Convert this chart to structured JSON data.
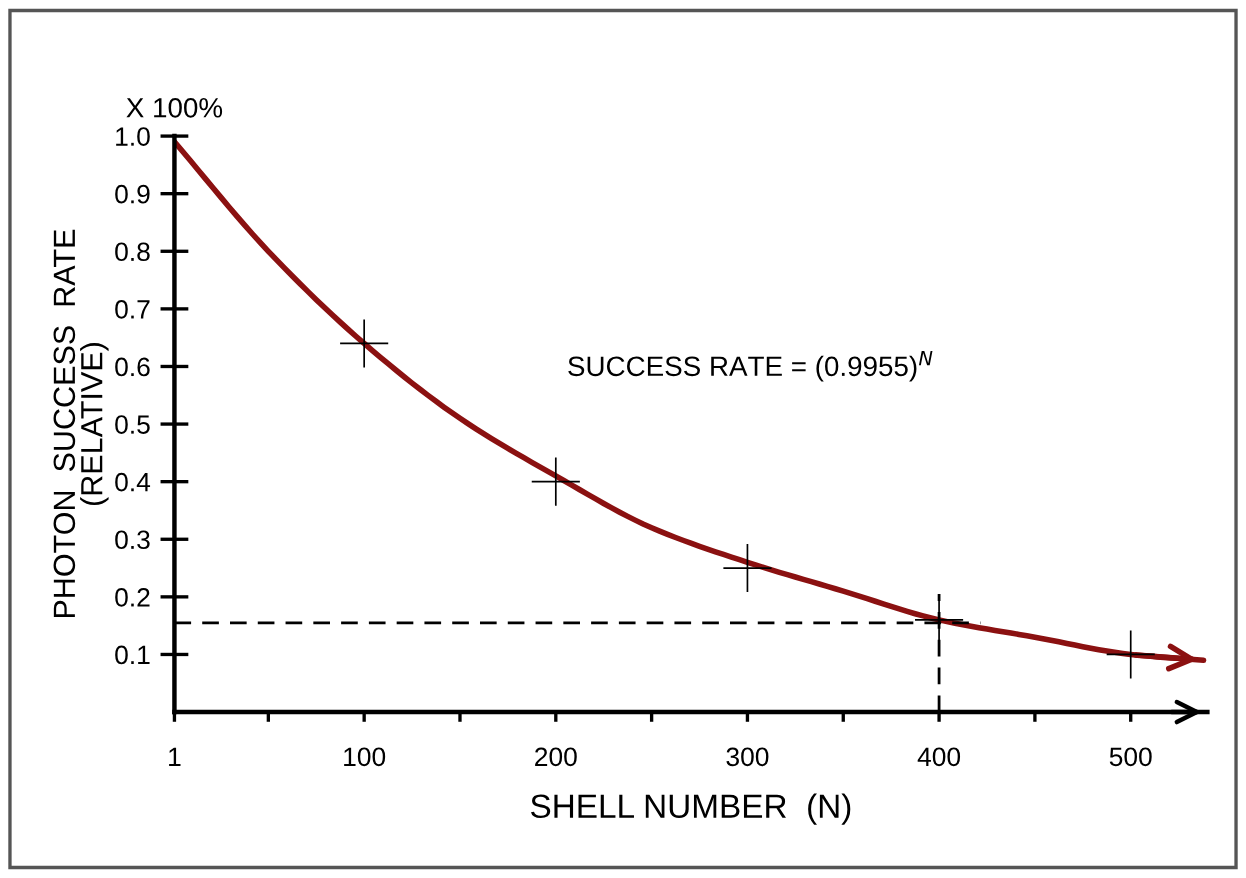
{
  "chart_data": {
    "type": "line",
    "xlabel": "SHELL NUMBER  (N)",
    "ylabel": "PHOTON  SUCCESS  RATE\n(RELATIVE)",
    "annotations": [
      "X 100%",
      "SUCCESS RATE = (0.9955)$^{N}$"
    ],
    "xlim": [
      1,
      540
    ],
    "xticks": [
      1,
      {
        "value": 50,
        "label": null
      },
      100,
      {
        "value": 150,
        "label": null
      },
      200,
      {
        "value": 250,
        "label": null
      },
      300,
      {
        "value": 350,
        "label": null
      },
      400,
      {
        "value": 450,
        "label": null
      },
      500
    ],
    "ylim": [
      0,
      1.0
    ],
    "yticks": [
      0.1,
      0.2,
      0.3,
      0.4,
      0.5,
      0.6,
      0.7,
      0.8,
      0.9,
      {
        "value": 1.0,
        "label": "1.0"
      }
    ],
    "grid": false,
    "legend": false,
    "series": [
      {
        "type": "line",
        "color": "#8b1111",
        "line_style": "solid",
        "marker": "none",
        "x": [
          1,
          50,
          100,
          150,
          200,
          250,
          300,
          350,
          400,
          450,
          500,
          538
        ],
        "values": [
          0.99,
          0.8,
          0.64,
          0.51,
          0.41,
          0.32,
          0.26,
          0.21,
          0.16,
          0.13,
          0.1,
          0.09
        ]
      },
      {
        "type": "scatter",
        "color": "#000000",
        "marker": "cross",
        "x": [
          100,
          200,
          300,
          400,
          500
        ],
        "values": [
          0.64,
          0.4,
          0.25,
          0.16,
          0.1
        ]
      }
    ],
    "ref_lines": [
      {
        "axis": "y",
        "value": 0.155,
        "line_style": "dashed",
        "color": "#000000"
      },
      {
        "axis": "x",
        "value": 400,
        "line_style": "dashed",
        "color": "#000000"
      }
    ]
  }
}
